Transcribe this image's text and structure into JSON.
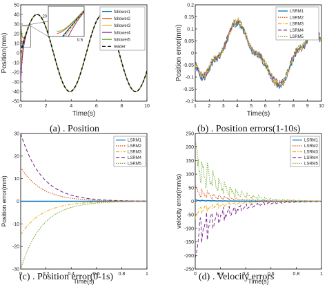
{
  "chart_data": [
    {
      "panel": "a",
      "type": "line",
      "caption": "(a)  . Position",
      "xlabel": "Time(s)",
      "ylabel": "Position(mm)",
      "xlim": [
        0,
        10
      ],
      "ylim": [
        -50,
        50
      ],
      "xticks": [
        0,
        2,
        4,
        6,
        8,
        10
      ],
      "yticks": [
        -50,
        -40,
        -30,
        -20,
        -10,
        0,
        10,
        20,
        30,
        40,
        50
      ],
      "legend_position": "top-right",
      "grid": false,
      "series": [
        {
          "name": "follower1",
          "color": "#0072bd",
          "style": "solid",
          "start": 5
        },
        {
          "name": "follower2",
          "color": "#d95319",
          "style": "solid",
          "start": 15
        },
        {
          "name": "follower3",
          "color": "#edb120",
          "style": "solid",
          "start": -15
        },
        {
          "name": "follower4",
          "color": "#7e2f8e",
          "style": "solid",
          "start": -30
        },
        {
          "name": "follower5",
          "color": "#77ac30",
          "style": "solid",
          "start": 30
        },
        {
          "name": "leader",
          "color": "#111111",
          "style": "dashed"
        }
      ],
      "leader": {
        "amplitude": 40,
        "period": 5.2,
        "phase_offset": 0
      },
      "inset": {
        "xlim": [
          0,
          0.5
        ],
        "ylim": [
          10,
          25
        ],
        "xtick_labels": [
          "0.5"
        ],
        "ytick_labels": [
          "20"
        ]
      }
    },
    {
      "panel": "b",
      "type": "line",
      "caption": "(b)  . Position errors(1-10s)",
      "xlabel": "Time(s)",
      "ylabel": "Position error(mm)",
      "xlim": [
        1,
        10
      ],
      "ylim": [
        -0.2,
        0.2
      ],
      "xticks": [
        1,
        2,
        3,
        4,
        5,
        6,
        7,
        8,
        9,
        10
      ],
      "yticks": [
        -0.2,
        -0.15,
        -0.1,
        -0.05,
        0,
        0.05,
        0.1,
        0.15,
        0.2
      ],
      "legend_position": "top-right",
      "series": [
        {
          "name": "LSRM1",
          "color": "#0072bd",
          "style": "solid"
        },
        {
          "name": "LSRM2",
          "color": "#d95319",
          "style": "dotted"
        },
        {
          "name": "LSRM3",
          "color": "#edb120",
          "style": "dashdot"
        },
        {
          "name": "LSRM4",
          "color": "#7e2f8e",
          "style": "dashed"
        },
        {
          "name": "LSRM5",
          "color": "#77ac30",
          "style": "dotted"
        }
      ],
      "key_points": {
        "x": [
          1,
          1.5,
          2.5,
          4,
          5.3,
          7,
          8.5,
          9.6,
          10
        ],
        "y": [
          -0.05,
          -0.1,
          -0.02,
          0.13,
          0.0,
          -0.13,
          0.02,
          0.11,
          0.05
        ]
      }
    },
    {
      "panel": "c",
      "type": "line",
      "caption": "(c)  . Position error(0-1s)",
      "xlabel": "Time(s)",
      "ylabel": "Position error(mm)",
      "xlim": [
        0,
        1
      ],
      "ylim": [
        -30,
        30
      ],
      "xticks": [
        0,
        0.2,
        0.4,
        0.6,
        0.8,
        1
      ],
      "yticks": [
        -30,
        -20,
        -10,
        0,
        10,
        20,
        30
      ],
      "legend_position": "top-right",
      "decay_rate": 6,
      "series": [
        {
          "name": "LSRM1",
          "color": "#0072bd",
          "style": "solid",
          "start": 0
        },
        {
          "name": "LSRM2",
          "color": "#d95319",
          "style": "dotted",
          "start": 15
        },
        {
          "name": "LSRM3",
          "color": "#edb120",
          "style": "dashdot",
          "start": -15
        },
        {
          "name": "LSRM4",
          "color": "#7e2f8e",
          "style": "dashed",
          "start": 30
        },
        {
          "name": "LSRM5",
          "color": "#77ac30",
          "style": "dotted",
          "start": -30
        }
      ]
    },
    {
      "panel": "d",
      "type": "line",
      "caption": "(d)  . Velocity errors",
      "xlabel": "Time(s)",
      "ylabel": "velocity error(mm/s)",
      "xlim": [
        0,
        1
      ],
      "ylim": [
        -250,
        250
      ],
      "xticks": [
        0,
        0.2,
        0.4,
        0.6,
        0.8,
        1
      ],
      "yticks": [
        -250,
        -200,
        -150,
        -100,
        -50,
        0,
        50,
        100,
        150,
        200,
        250
      ],
      "legend_position": "top-right",
      "series": [
        {
          "name": "LSRM1",
          "color": "#0072bd",
          "style": "solid",
          "start": 5
        },
        {
          "name": "LSRM2",
          "color": "#d95319",
          "style": "dotted",
          "start": 60
        },
        {
          "name": "LSRM3",
          "color": "#edb120",
          "style": "dashdot",
          "start": -60
        },
        {
          "name": "LSRM4",
          "color": "#7e2f8e",
          "style": "dashed",
          "start": -220
        },
        {
          "name": "LSRM5",
          "color": "#77ac30",
          "style": "dotted",
          "start": 230
        }
      ]
    }
  ]
}
